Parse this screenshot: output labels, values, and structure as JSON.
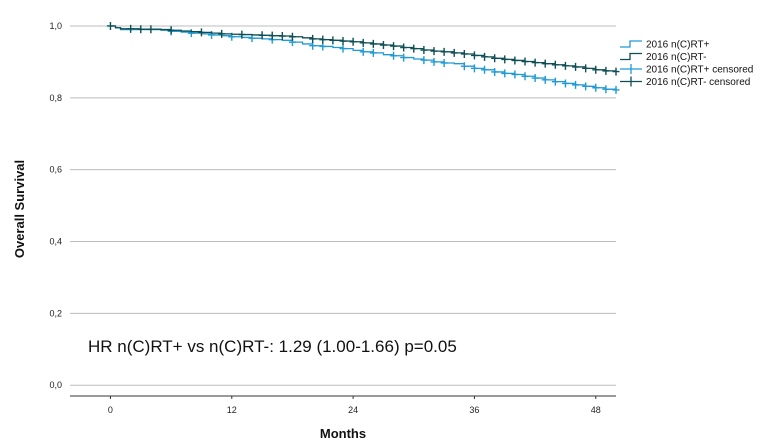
{
  "chart_data": {
    "type": "line",
    "xlabel": "Months",
    "ylabel": "Overall Survival",
    "xlim": [
      -4,
      50
    ],
    "ylim": [
      -0.03,
      1.05
    ],
    "x_ticks": [
      0,
      12,
      24,
      36,
      48
    ],
    "x_tick_labels": [
      "0",
      "12",
      "24",
      "36",
      "48"
    ],
    "y_ticks": [
      0.0,
      0.2,
      0.4,
      0.6,
      0.8,
      1.0
    ],
    "y_tick_labels": [
      "0,0",
      "0,2",
      "0,4",
      "0,6",
      "0,8",
      "1,0"
    ],
    "grid": "horizontal",
    "legend_position": "right",
    "annotation": "HR n(C)RT+ vs n(C)RT-: 1.29 (1.00-1.66) p=0.05",
    "legend": [
      {
        "label": "2016 n(C)RT+",
        "color": "#1f9ad6",
        "kind": "line"
      },
      {
        "label": "2016 n(C)RT-",
        "color": "#0d4f54",
        "kind": "line"
      },
      {
        "label": "2016 n(C)RT+ censored",
        "color": "#1f9ad6",
        "kind": "censor"
      },
      {
        "label": "2016 n(C)RT- censored",
        "color": "#0d4f54",
        "kind": "censor"
      }
    ],
    "series": [
      {
        "name": "2016 n(C)RT+",
        "color": "#1f9ad6",
        "x": [
          0,
          0.5,
          1,
          3,
          5,
          6,
          7,
          8,
          9,
          10,
          11,
          12,
          13,
          14,
          15,
          16,
          17,
          18,
          19,
          20,
          21,
          22,
          23,
          24,
          25,
          26,
          27,
          28,
          29,
          30,
          31,
          32,
          33,
          34,
          35,
          36,
          37,
          38,
          39,
          40,
          41,
          42,
          43,
          44,
          45,
          46,
          47,
          48,
          49,
          50
        ],
        "y": [
          1.0,
          0.995,
          0.99,
          0.99,
          0.988,
          0.985,
          0.983,
          0.98,
          0.978,
          0.975,
          0.973,
          0.97,
          0.968,
          0.966,
          0.964,
          0.962,
          0.96,
          0.955,
          0.95,
          0.945,
          0.943,
          0.94,
          0.937,
          0.932,
          0.928,
          0.925,
          0.92,
          0.917,
          0.912,
          0.908,
          0.905,
          0.9,
          0.897,
          0.895,
          0.888,
          0.882,
          0.878,
          0.872,
          0.868,
          0.865,
          0.86,
          0.855,
          0.85,
          0.845,
          0.84,
          0.836,
          0.832,
          0.828,
          0.824,
          0.822
        ],
        "censored_x": [
          6,
          8,
          10,
          12,
          14,
          16,
          18,
          20,
          21,
          23,
          25,
          26,
          28,
          29,
          31,
          32,
          33,
          35,
          36,
          37,
          38,
          39,
          40,
          41,
          42,
          43,
          44,
          45,
          46,
          47,
          48,
          49,
          50
        ],
        "censored_y": [
          0.985,
          0.98,
          0.975,
          0.97,
          0.966,
          0.962,
          0.955,
          0.945,
          0.943,
          0.937,
          0.928,
          0.925,
          0.917,
          0.912,
          0.905,
          0.9,
          0.897,
          0.888,
          0.882,
          0.878,
          0.872,
          0.868,
          0.865,
          0.86,
          0.855,
          0.85,
          0.845,
          0.84,
          0.836,
          0.832,
          0.828,
          0.824,
          0.822
        ]
      },
      {
        "name": "2016 n(C)RT-",
        "color": "#0d4f54",
        "x": [
          0,
          0.5,
          1,
          3,
          5,
          6,
          7,
          8,
          9,
          10,
          11,
          12,
          13,
          14,
          15,
          16,
          17,
          18,
          19,
          20,
          21,
          22,
          23,
          24,
          25,
          26,
          27,
          28,
          29,
          30,
          31,
          32,
          33,
          34,
          35,
          36,
          37,
          38,
          39,
          40,
          41,
          42,
          43,
          44,
          45,
          46,
          47,
          48,
          49,
          50
        ],
        "y": [
          1.0,
          0.995,
          0.992,
          0.991,
          0.99,
          0.988,
          0.986,
          0.984,
          0.982,
          0.98,
          0.978,
          0.977,
          0.976,
          0.975,
          0.974,
          0.973,
          0.972,
          0.97,
          0.967,
          0.964,
          0.962,
          0.96,
          0.958,
          0.956,
          0.953,
          0.95,
          0.947,
          0.944,
          0.94,
          0.937,
          0.933,
          0.93,
          0.928,
          0.925,
          0.922,
          0.918,
          0.914,
          0.91,
          0.907,
          0.904,
          0.901,
          0.898,
          0.895,
          0.892,
          0.889,
          0.886,
          0.882,
          0.878,
          0.875,
          0.873
        ],
        "censored_x": [
          0,
          2,
          3,
          4,
          6,
          9,
          11,
          13,
          15,
          16,
          17,
          18,
          20,
          21,
          22,
          23,
          24,
          25,
          26,
          27,
          28,
          29,
          30,
          31,
          32,
          33,
          34,
          35,
          36,
          37,
          38,
          39,
          40,
          41,
          42,
          43,
          44,
          45,
          46,
          47,
          48,
          49,
          50
        ],
        "censored_y": [
          1.0,
          0.992,
          0.991,
          0.991,
          0.988,
          0.982,
          0.978,
          0.976,
          0.974,
          0.973,
          0.972,
          0.97,
          0.964,
          0.962,
          0.96,
          0.958,
          0.956,
          0.953,
          0.95,
          0.947,
          0.944,
          0.94,
          0.937,
          0.933,
          0.93,
          0.928,
          0.925,
          0.922,
          0.918,
          0.914,
          0.91,
          0.907,
          0.904,
          0.901,
          0.898,
          0.895,
          0.892,
          0.889,
          0.886,
          0.882,
          0.878,
          0.875,
          0.873
        ]
      }
    ]
  }
}
